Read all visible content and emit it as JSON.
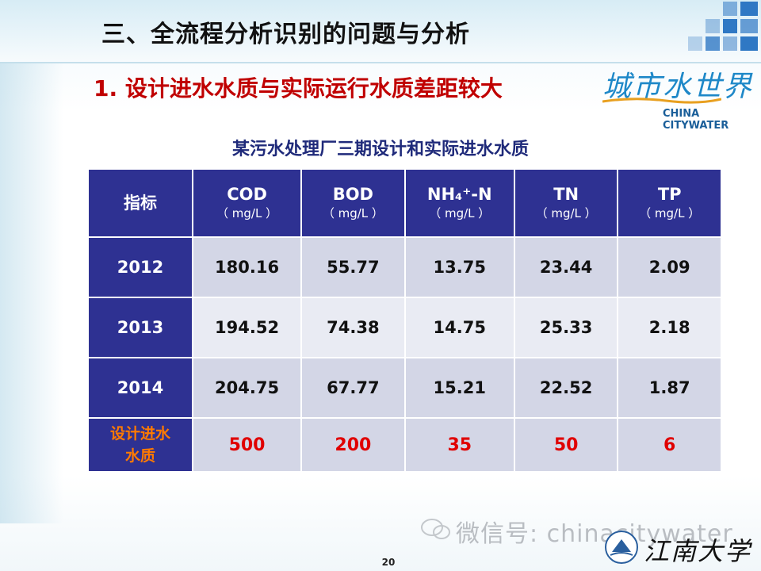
{
  "header": {
    "title": "三、全流程分析识别的问题与分析"
  },
  "subtitle": "1. 设计进水水质与实际运行水质差距较大",
  "logo": {
    "script_text": "城市水世界",
    "caption": "CHINA CITYWATER"
  },
  "table": {
    "title": "某污水处理厂三期设计和实际进水水质",
    "headers": [
      {
        "main": "指标",
        "unit": ""
      },
      {
        "main": "COD",
        "unit": "（ mg/L ）"
      },
      {
        "main": "BOD",
        "unit": "（ mg/L ）"
      },
      {
        "main": "NH₄⁺-N",
        "unit": "（ mg/L ）"
      },
      {
        "main": "TN",
        "unit": "（ mg/L ）"
      },
      {
        "main": "TP",
        "unit": "（ mg/L ）"
      }
    ],
    "rows": [
      {
        "label": "2012",
        "values": [
          "180.16",
          "55.77",
          "13.75",
          "23.44",
          "2.09"
        ]
      },
      {
        "label": "2013",
        "values": [
          "194.52",
          "74.38",
          "14.75",
          "25.33",
          "2.18"
        ]
      },
      {
        "label": "2014",
        "values": [
          "204.75",
          "67.77",
          "15.21",
          "22.52",
          "1.87"
        ]
      }
    ],
    "design_row": {
      "label_line1": "设计进水",
      "label_line2": "水质",
      "values": [
        "500",
        "200",
        "35",
        "50",
        "6"
      ]
    }
  },
  "watermark": "微信号: chinacitywater",
  "page_number": "20",
  "university_script": "江南大学",
  "colors": {
    "table_header": "#2e3192",
    "subtitle_red": "#c00000",
    "design_label_orange": "#ff7a00",
    "design_value_red": "#e00000",
    "accent_blue": "#2f78c4"
  }
}
